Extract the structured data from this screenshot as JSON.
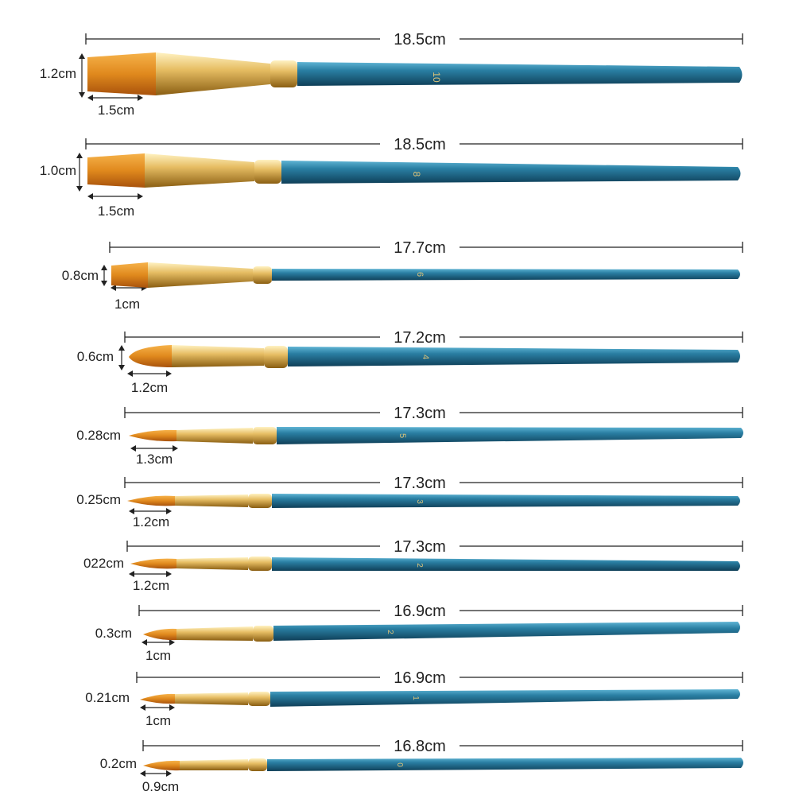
{
  "colors": {
    "background": "#ffffff",
    "handle": "#1f6c8c",
    "handle_dark": "#0f3f58",
    "ferrule": "#e6bd63",
    "ferrule_dark": "#9c6d18",
    "bristle": "#e0891d",
    "bristle_dark": "#a8520c",
    "measure_line": "#222222"
  },
  "brushes": [
    {
      "length": "18.5cm",
      "width": "1.2cm",
      "tip": "1.5cm",
      "shape": "flat",
      "handle_mark": "10"
    },
    {
      "length": "18.5cm",
      "width": "1.0cm",
      "tip": "1.5cm",
      "shape": "flat",
      "handle_mark": "8"
    },
    {
      "length": "17.7cm",
      "width": "0.8cm",
      "tip": "1cm",
      "shape": "flat",
      "handle_mark": "6"
    },
    {
      "length": "17.2cm",
      "width": "0.6cm",
      "tip": "1.2cm",
      "shape": "filbert",
      "handle_mark": "4"
    },
    {
      "length": "17.3cm",
      "width": "0.28cm",
      "tip": "1.3cm",
      "shape": "round",
      "handle_mark": "5"
    },
    {
      "length": "17.3cm",
      "width": "0.25cm",
      "tip": "1.2cm",
      "shape": "round",
      "handle_mark": "3"
    },
    {
      "length": "17.3cm",
      "width": "022cm",
      "tip": "1.2cm",
      "shape": "round",
      "handle_mark": "2"
    },
    {
      "length": "16.9cm",
      "width": "0.3cm",
      "tip": "1cm",
      "shape": "round",
      "handle_mark": "2"
    },
    {
      "length": "16.9cm",
      "width": "0.21cm",
      "tip": "1cm",
      "shape": "round",
      "handle_mark": "1"
    },
    {
      "length": "16.8cm",
      "width": "0.2cm",
      "tip": "0.9cm",
      "shape": "round",
      "handle_mark": "0"
    }
  ]
}
